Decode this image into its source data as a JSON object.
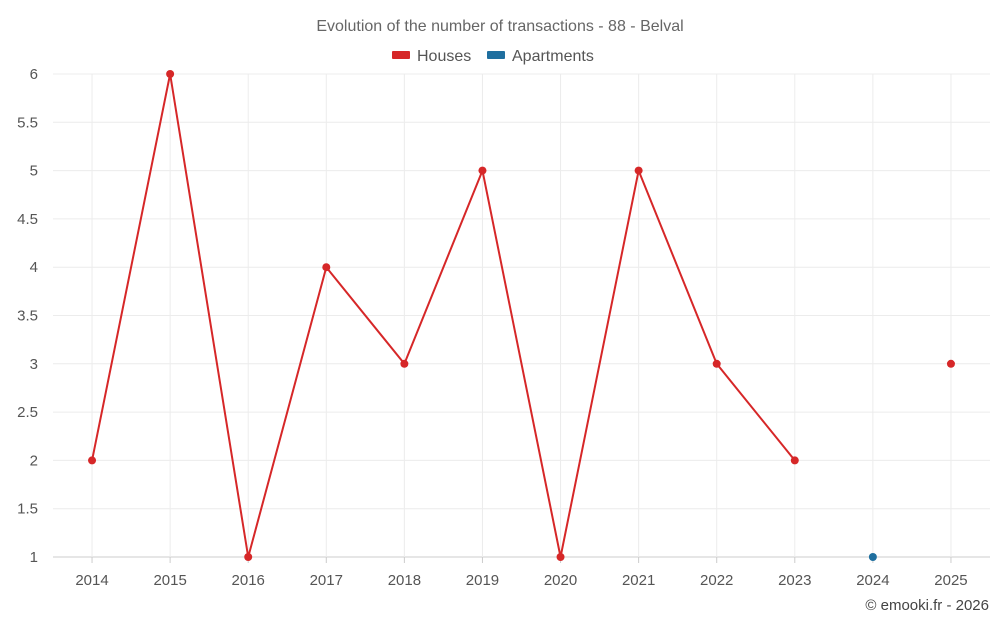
{
  "chart_data": {
    "type": "line",
    "title": "Evolution of the number of transactions - 88 - Belval",
    "xlabel": "",
    "ylabel": "",
    "categories": [
      "2014",
      "2015",
      "2016",
      "2017",
      "2018",
      "2019",
      "2020",
      "2021",
      "2022",
      "2023",
      "2024",
      "2025"
    ],
    "ylim": [
      1,
      6
    ],
    "yticks": [
      "1",
      "1.5",
      "2",
      "2.5",
      "3",
      "3.5",
      "4",
      "4.5",
      "5",
      "5.5",
      "6"
    ],
    "grid": true,
    "legend_position": "top-center",
    "series": [
      {
        "name": "Houses",
        "color": "#d62728",
        "values": [
          2,
          6,
          1,
          4,
          3,
          5,
          1,
          5,
          3,
          2,
          null,
          3
        ]
      },
      {
        "name": "Apartments",
        "color": "#1f6f9f",
        "values": [
          null,
          null,
          null,
          null,
          null,
          null,
          null,
          null,
          null,
          null,
          1,
          null
        ]
      }
    ],
    "credit": "© emooki.fr - 2026"
  }
}
